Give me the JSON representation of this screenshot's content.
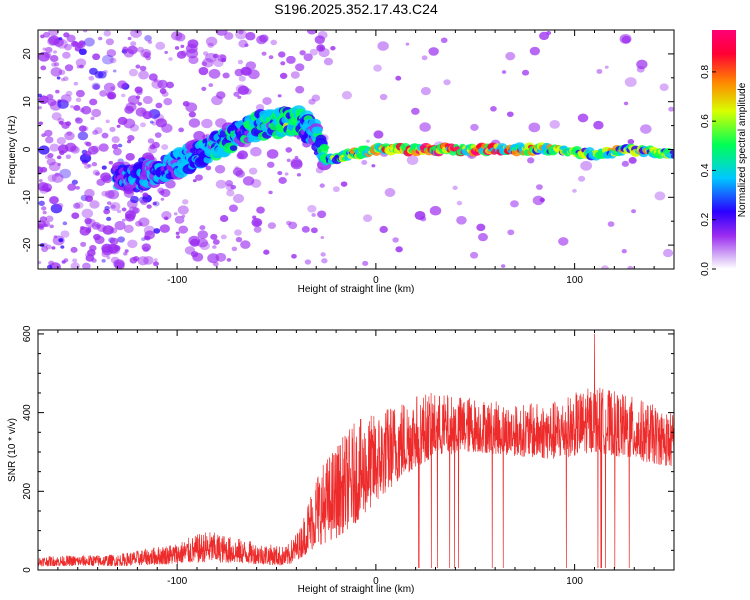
{
  "figure_title": "S196.2025.352.17.43.C24",
  "colors": {
    "snr_line": "#ee2b2b",
    "colorbar_stops": [
      "#ffffff",
      "#9b2cf0",
      "#2a00ff",
      "#00c8ff",
      "#00ff55",
      "#d8ff00",
      "#ff8800",
      "#ff0033",
      "#ff0077"
    ]
  },
  "chart_data": [
    {
      "type": "heatmap",
      "title": "S196.2025.352.17.43.C24",
      "xlabel": "Height of straight line (km)",
      "ylabel": "Frequency (Hz)",
      "xlim": [
        -170,
        150
      ],
      "ylim": [
        -25,
        25
      ],
      "x_ticks": [
        -100,
        0,
        100
      ],
      "x_tick_labels": [
        "-100",
        "0",
        "100"
      ],
      "y_ticks": [
        -20,
        -10,
        0,
        10,
        20
      ],
      "y_tick_labels": [
        "-20",
        "-10",
        "0",
        "10",
        "20"
      ],
      "ridge": {
        "description": "dominant frequency track",
        "x": [
          -120,
          -100,
          -80,
          -60,
          -40,
          -32,
          -25,
          0,
          30,
          60,
          90,
          110,
          130,
          150
        ],
        "freq": [
          -6,
          -3,
          1,
          5,
          6,
          4,
          -2,
          0,
          0,
          0,
          0,
          -1,
          0,
          -1
        ],
        "peak_amplitude": [
          0.25,
          0.3,
          0.35,
          0.4,
          0.45,
          0.3,
          0.4,
          0.7,
          0.9,
          0.85,
          0.6,
          0.55,
          0.6,
          0.5
        ]
      },
      "colorbar": {
        "label": "Normalized spectral amplitude",
        "range": [
          0,
          0.97
        ],
        "ticks": [
          0.0,
          0.2,
          0.4,
          0.6,
          0.8
        ],
        "tick_labels": [
          "0.0",
          "0.2",
          "0.4",
          "0.6",
          "0.8"
        ]
      }
    },
    {
      "type": "line",
      "xlabel": "Height of straight line (km)",
      "ylabel": "SNR (10 * v/v)",
      "xlim": [
        -170,
        150
      ],
      "ylim": [
        0,
        610
      ],
      "x_ticks": [
        -100,
        0,
        100
      ],
      "x_tick_labels": [
        "-100",
        "0",
        "100"
      ],
      "y_ticks": [
        0,
        200,
        400,
        600
      ],
      "y_tick_labels": [
        "0",
        "200",
        "400",
        "600"
      ],
      "series": [
        {
          "name": "SNR",
          "envelope_x": [
            -170,
            -130,
            -100,
            -85,
            -60,
            -45,
            -38,
            -30,
            -20,
            -10,
            0,
            10,
            20,
            30,
            50,
            70,
            90,
            110,
            130,
            150
          ],
          "envelope_low": [
            10,
            10,
            15,
            20,
            15,
            10,
            30,
            60,
            80,
            120,
            170,
            220,
            260,
            290,
            300,
            290,
            280,
            300,
            280,
            260
          ],
          "envelope_high": [
            35,
            40,
            70,
            100,
            70,
            60,
            110,
            250,
            320,
            380,
            400,
            430,
            450,
            450,
            440,
            420,
            430,
            470,
            440,
            400
          ],
          "peak": {
            "x": 110,
            "y": 600
          }
        }
      ]
    }
  ]
}
